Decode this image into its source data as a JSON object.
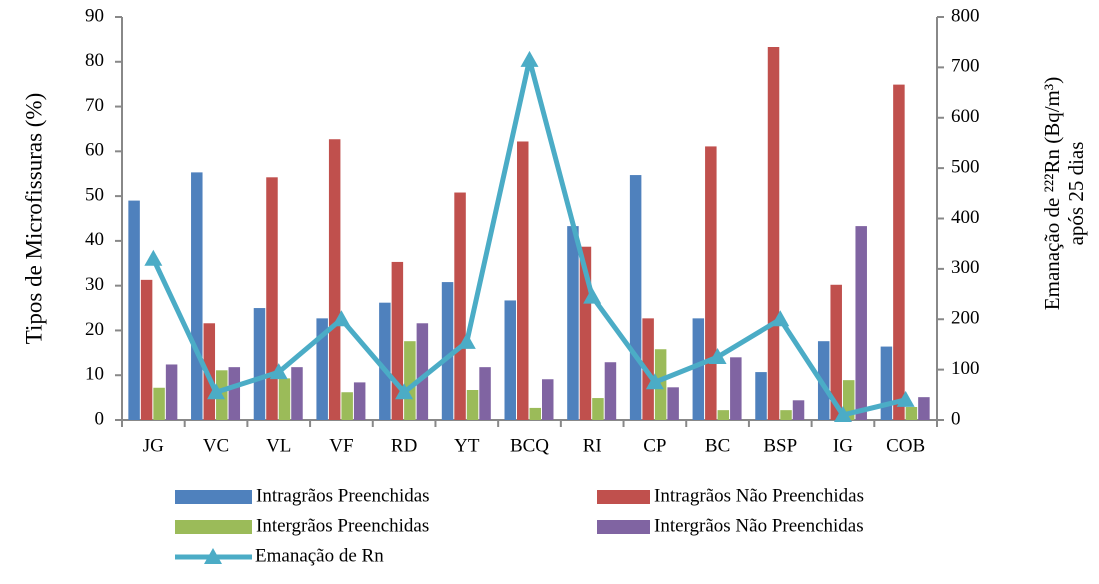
{
  "chart_data": {
    "type": "bar",
    "ylabel": "Tipos de Microfissuras (%)",
    "y2label": [
      "Emanação de ²²²Rn (Bq/m³)",
      "após 25 dias"
    ],
    "categories": [
      "JG",
      "VC",
      "VL",
      "VF",
      "RD",
      "YT",
      "BCQ",
      "RI",
      "CP",
      "BC",
      "BSP",
      "IG",
      "COB"
    ],
    "series": [
      {
        "name": "Intragrãos Preenchidas",
        "color": "#4f81bd",
        "values": [
          49,
          55.3,
          25,
          22.7,
          26.2,
          30.8,
          26.7,
          43.3,
          54.7,
          22.7,
          10.7,
          17.6,
          16.4
        ]
      },
      {
        "name": "Intragrãos Não Preenchidas",
        "color": "#c0504d",
        "values": [
          31.3,
          21.6,
          54.2,
          62.7,
          35.3,
          50.8,
          62.2,
          38.7,
          22.7,
          61.1,
          83.3,
          30.2,
          74.9
        ]
      },
      {
        "name": "Intergrãos Preenchidas",
        "color": "#9bbb59",
        "values": [
          7.2,
          11.1,
          9.3,
          6.2,
          17.6,
          6.7,
          2.7,
          4.9,
          15.8,
          2.2,
          2.2,
          8.9,
          2.9
        ]
      },
      {
        "name": "Intergrãos Não Preenchidas",
        "color": "#8064a2",
        "values": [
          12.4,
          11.8,
          11.8,
          8.4,
          21.6,
          11.8,
          9.1,
          12.9,
          7.3,
          14.0,
          4.4,
          43.3,
          5.1
        ]
      },
      {
        "name": "Emanação de Rn",
        "color": "#4bacc6",
        "type": "line",
        "axis": "y2",
        "values": [
          320,
          55,
          95,
          200,
          55,
          155,
          715,
          245,
          75,
          125,
          200,
          10,
          40
        ]
      }
    ],
    "ylim": [
      0,
      90
    ],
    "yticks": [
      0,
      10,
      20,
      30,
      40,
      50,
      60,
      70,
      80,
      90
    ],
    "y2lim": [
      0,
      800
    ],
    "y2ticks": [
      0,
      100,
      200,
      300,
      400,
      500,
      600,
      700,
      800
    ],
    "legend": "bottom"
  }
}
